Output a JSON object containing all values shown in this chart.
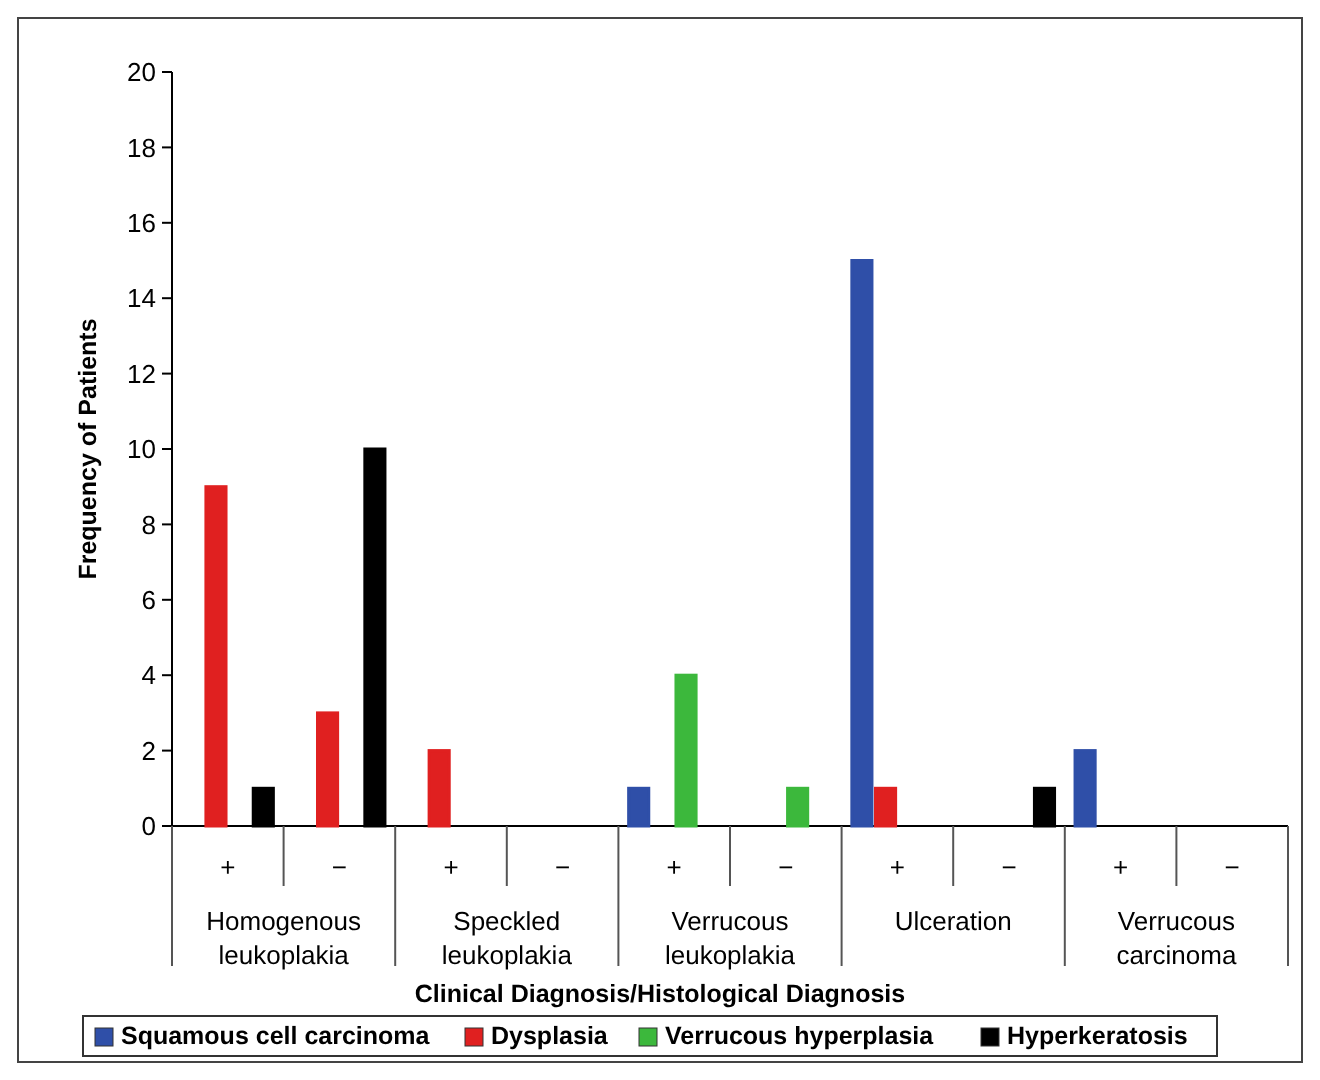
{
  "chart_data": {
    "type": "bar",
    "xlabel": "Clinical Diagnosis/Histological Diagnosis",
    "ylabel": "Frequency of Patients",
    "categories": [
      "+",
      "−",
      "+",
      "−",
      "+",
      "−",
      "+",
      "−",
      "+",
      "−"
    ],
    "annotations": [
      "Homogenous leukoplakia",
      "Speckled leukoplakia",
      "Verrucous leukoplakia",
      "Ulceration",
      "Verrucous carcinoma"
    ],
    "series": [
      {
        "name": "Squamous cell carcinoma",
        "color": "#2f4fa8",
        "values": [
          0,
          0,
          0,
          0,
          1,
          0,
          15,
          0,
          2,
          0
        ]
      },
      {
        "name": "Dysplasia",
        "color": "#e02020",
        "values": [
          9,
          3,
          2,
          0,
          0,
          0,
          1,
          0,
          0,
          0
        ]
      },
      {
        "name": "Verrucous hyperplasia",
        "color": "#3cb83c",
        "values": [
          0,
          0,
          0,
          0,
          4,
          1,
          0,
          0,
          0,
          0
        ]
      },
      {
        "name": "Hyperkeratosis",
        "color": "#000000",
        "values": [
          1,
          10,
          0,
          0,
          0,
          0,
          0,
          1,
          0,
          0
        ]
      }
    ],
    "ylim": [
      0,
      20
    ],
    "yticks": [
      0,
      2,
      4,
      6,
      8,
      10,
      12,
      14,
      16,
      18,
      20
    ],
    "grid": false,
    "legend": "bottom"
  }
}
